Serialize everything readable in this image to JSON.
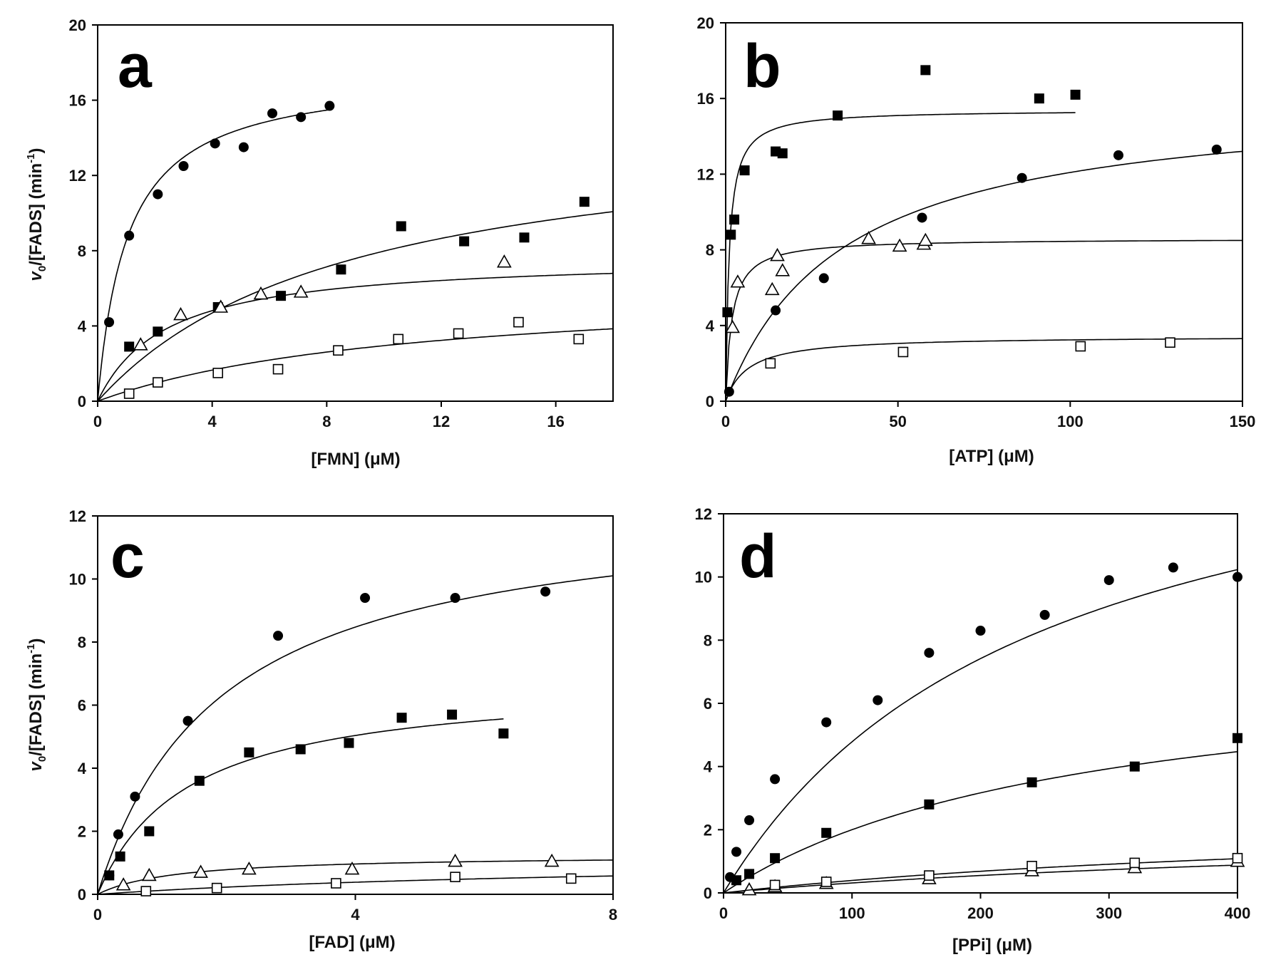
{
  "figure": {
    "y_axis_label": "v0/[FADS] (min-1)",
    "y_label_parts": {
      "v": "v",
      "sub": "0",
      "mid": "/[FADS] (min",
      "sup": "-1",
      "end": ")"
    }
  },
  "chart_data": [
    {
      "panel": "a",
      "type": "scatter",
      "xlabel": "[FMN] (μM)",
      "ylabel": "v0/[FADS] (min-1)",
      "xlim": [
        0,
        18
      ],
      "ylim": [
        0,
        20
      ],
      "xticks": [
        0,
        4,
        8,
        12,
        16
      ],
      "yticks": [
        0,
        4,
        8,
        12,
        16,
        20
      ],
      "series": [
        {
          "name": "filled circles",
          "marker": "circle-filled",
          "x": [
            0.4,
            1.1,
            2.1,
            3.0,
            4.1,
            5.1,
            6.1,
            7.1,
            8.1
          ],
          "y": [
            4.2,
            8.8,
            11.0,
            12.5,
            13.7,
            13.5,
            15.3,
            15.1,
            15.7
          ],
          "fit": {
            "vmax": 17.5,
            "km": 1.05,
            "xmax": 8.1
          }
        },
        {
          "name": "filled squares",
          "marker": "square-filled",
          "x": [
            1.1,
            2.1,
            4.2,
            6.4,
            8.5,
            10.6,
            12.8,
            14.9,
            17.0
          ],
          "y": [
            2.9,
            3.7,
            5.0,
            5.6,
            7.0,
            9.3,
            8.5,
            8.7,
            10.6
          ],
          "fit": {
            "vmax": 15.0,
            "km": 8.8,
            "xmax": 18
          }
        },
        {
          "name": "open triangles",
          "marker": "triangle-open",
          "x": [
            1.5,
            2.9,
            4.3,
            5.7,
            7.1,
            14.2
          ],
          "y": [
            3.0,
            4.6,
            5.0,
            5.7,
            5.8,
            7.4
          ],
          "fit": {
            "vmax": 7.7,
            "km": 2.4,
            "xmax": 18
          }
        },
        {
          "name": "open squares",
          "marker": "square-open",
          "x": [
            1.1,
            2.1,
            4.2,
            6.3,
            8.4,
            10.5,
            12.6,
            14.7,
            16.8
          ],
          "y": [
            0.4,
            1.0,
            1.5,
            1.7,
            2.7,
            3.3,
            3.6,
            4.2,
            3.3
          ],
          "fit": {
            "vmax": 6.2,
            "km": 11.0,
            "xmax": 18
          }
        }
      ]
    },
    {
      "panel": "b",
      "type": "scatter",
      "xlabel": "[ATP] (μM)",
      "ylabel": "",
      "xlim": [
        0,
        150
      ],
      "ylim": [
        0,
        20
      ],
      "xticks": [
        0,
        50,
        100,
        150
      ],
      "yticks": [
        0,
        4,
        8,
        12,
        16,
        20
      ],
      "series": [
        {
          "name": "filled squares",
          "marker": "square-filled",
          "x": [
            0.5,
            1.5,
            2.5,
            5.5,
            14.5,
            16.5,
            32.5,
            58.0,
            91.0,
            101.5
          ],
          "y": [
            4.7,
            8.8,
            9.6,
            12.2,
            13.2,
            13.1,
            15.1,
            17.5,
            16.0,
            16.2
          ],
          "fit": {
            "vmax": 15.4,
            "km": 1.0,
            "xmax": 101.5
          }
        },
        {
          "name": "filled circles",
          "marker": "circle-filled",
          "x": [
            1.0,
            14.5,
            28.5,
            57.0,
            86.0,
            114.0,
            142.5
          ],
          "y": [
            0.5,
            4.8,
            6.5,
            9.7,
            11.8,
            13.0,
            13.3
          ],
          "fit": {
            "vmax": 16.2,
            "km": 34.0,
            "xmax": 150
          }
        },
        {
          "name": "open triangles",
          "marker": "triangle-open",
          "x": [
            2.0,
            3.5,
            13.5,
            15.0,
            16.5,
            41.5,
            50.5,
            57.5,
            58.0
          ],
          "y": [
            3.9,
            6.3,
            5.9,
            7.7,
            6.9,
            8.6,
            8.2,
            8.3,
            8.5
          ],
          "fit": {
            "vmax": 8.6,
            "km": 1.8,
            "xmax": 150
          }
        },
        {
          "name": "open squares",
          "marker": "square-open",
          "x": [
            13.0,
            51.5,
            103.0,
            129.0
          ],
          "y": [
            2.0,
            2.6,
            2.9,
            3.1
          ],
          "fit": {
            "vmax": 3.45,
            "km": 6.5,
            "xmax": 150
          }
        }
      ]
    },
    {
      "panel": "c",
      "type": "scatter",
      "xlabel": "[FAD] (μM)",
      "ylabel": "v0/[FADS] (min-1)",
      "xlim": [
        0,
        8
      ],
      "ylim": [
        0,
        12
      ],
      "xticks": [
        0,
        4,
        8
      ],
      "yticks": [
        0,
        2,
        4,
        6,
        8,
        10,
        12
      ],
      "series": [
        {
          "name": "filled circles",
          "marker": "circle-filled",
          "x": [
            0.18,
            0.32,
            0.58,
            1.4,
            2.8,
            4.15,
            5.55,
            6.95
          ],
          "y": [
            0.6,
            1.9,
            3.1,
            5.5,
            8.2,
            9.4,
            9.4,
            9.6
          ],
          "fit": {
            "vmax": 12.5,
            "km": 1.9,
            "xmax": 8
          }
        },
        {
          "name": "filled squares",
          "marker": "square-filled",
          "x": [
            0.18,
            0.35,
            0.8,
            1.58,
            2.35,
            3.15,
            3.9,
            4.72,
            5.5,
            6.3
          ],
          "y": [
            0.6,
            1.2,
            2.0,
            3.6,
            4.5,
            4.6,
            4.8,
            5.6,
            5.7,
            5.1
          ],
          "fit": {
            "vmax": 6.8,
            "km": 1.4,
            "xmax": 6.3
          }
        },
        {
          "name": "open triangles",
          "marker": "triangle-open",
          "x": [
            0.4,
            0.8,
            1.6,
            2.35,
            3.95,
            5.55,
            7.05
          ],
          "y": [
            0.3,
            0.6,
            0.7,
            0.8,
            0.8,
            1.05,
            1.05
          ],
          "fit": {
            "vmax": 1.25,
            "km": 1.2,
            "xmax": 8
          }
        },
        {
          "name": "open squares",
          "marker": "square-open",
          "x": [
            0.75,
            1.85,
            3.7,
            5.55,
            7.35
          ],
          "y": [
            0.1,
            0.2,
            0.35,
            0.55,
            0.5
          ],
          "fit": {
            "vmax": 1.2,
            "km": 8.5,
            "xmax": 8
          }
        }
      ]
    },
    {
      "panel": "d",
      "type": "scatter",
      "xlabel": "[PPi] (μM)",
      "ylabel": "",
      "xlim": [
        0,
        400
      ],
      "ylim": [
        0,
        12
      ],
      "xticks": [
        0,
        100,
        200,
        300,
        400
      ],
      "yticks": [
        0,
        2,
        4,
        6,
        8,
        10,
        12
      ],
      "series": [
        {
          "name": "filled circles",
          "marker": "circle-filled",
          "x": [
            5,
            10,
            20,
            40,
            80,
            120,
            160,
            200,
            250,
            300,
            350,
            400
          ],
          "y": [
            0.5,
            1.3,
            2.3,
            3.6,
            5.4,
            6.1,
            7.6,
            8.3,
            8.8,
            9.9,
            10.3,
            10.0
          ],
          "fit": {
            "vmax": 16.5,
            "km": 245,
            "xmax": 400
          }
        },
        {
          "name": "filled squares",
          "marker": "square-filled",
          "x": [
            10,
            20,
            40,
            80,
            160,
            240,
            320,
            400
          ],
          "y": [
            0.4,
            0.6,
            1.1,
            1.9,
            2.8,
            3.5,
            4.0,
            4.9
          ],
          "fit": {
            "vmax": 7.6,
            "km": 280,
            "xmax": 400
          }
        },
        {
          "name": "open triangles",
          "marker": "triangle-open",
          "x": [
            20,
            40,
            80,
            160,
            240,
            320,
            400
          ],
          "y": [
            0.1,
            0.2,
            0.3,
            0.45,
            0.7,
            0.8,
            1.0
          ],
          "fit": {
            "vmax": 2.2,
            "km": 600,
            "xmax": 400
          }
        },
        {
          "name": "open squares",
          "marker": "square-open",
          "x": [
            40,
            80,
            160,
            240,
            320,
            400
          ],
          "y": [
            0.25,
            0.35,
            0.55,
            0.85,
            0.95,
            1.1
          ],
          "fit": {
            "vmax": 2.6,
            "km": 560,
            "xmax": 400
          }
        }
      ]
    }
  ]
}
